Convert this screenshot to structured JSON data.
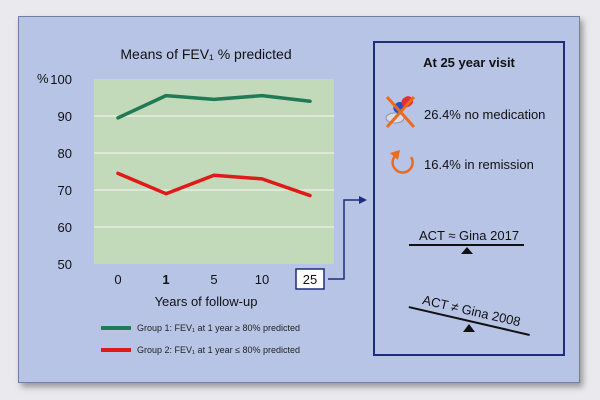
{
  "chart_data": {
    "type": "line",
    "title": "Means of FEV₁ % predicted",
    "ylabel": "%",
    "xlabel": "Years of follow-up",
    "x_categories": [
      "0",
      "1",
      "5",
      "10",
      "25"
    ],
    "x_bold": [
      false,
      true,
      false,
      false,
      false
    ],
    "x_boxed": [
      false,
      false,
      false,
      false,
      true
    ],
    "yticks": [
      100,
      90,
      80,
      70,
      60,
      50
    ],
    "ylim": [
      50,
      100
    ],
    "grid": true,
    "series": [
      {
        "name": "Group 1: FEV₁ at 1 year ≥ 80% predicted",
        "values": [
          89.5,
          95.5,
          94.5,
          95.5,
          94
        ],
        "color": "#1f7a55"
      },
      {
        "name": "Group 2: FEV₁ at 1 year ≤ 80% predicted",
        "values": [
          74.5,
          69,
          74,
          73,
          68.5
        ],
        "color": "#e01919"
      }
    ]
  },
  "panel": {
    "title": "At 25 year visit",
    "no_medication": "26.4% no medication",
    "remission": "16.4% in remission",
    "act_equal": "ACT ≈ Gina 2017",
    "act_not_equal": "ACT ≠ Gina 2008"
  },
  "icons": {
    "pill": "crossed-out-pill-icon",
    "remission": "circular-arrow-icon",
    "scale_balanced": "balanced-scale-icon",
    "scale_tilted": "tilted-scale-icon"
  }
}
